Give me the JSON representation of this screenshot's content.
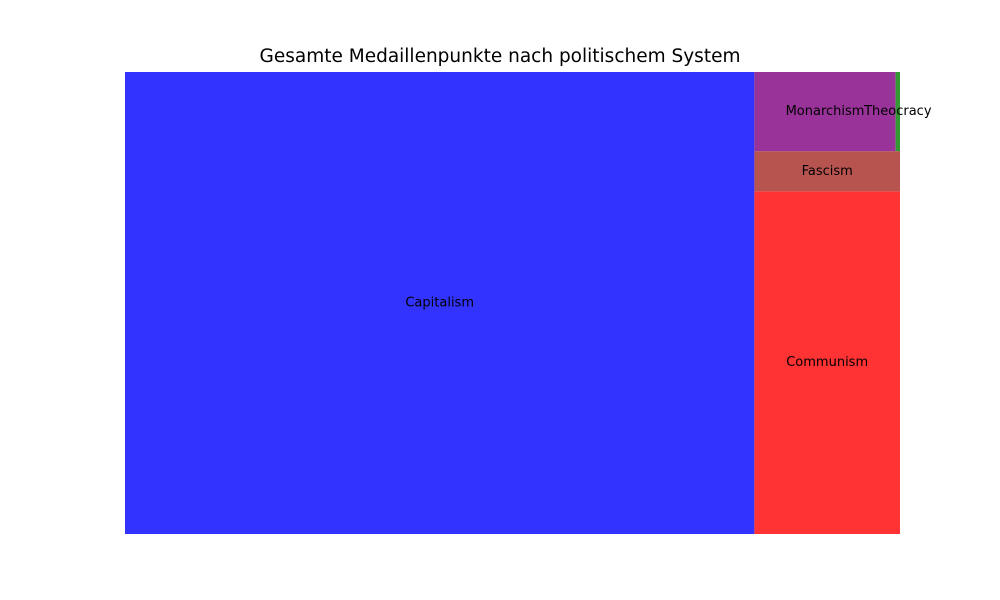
{
  "chart_data": {
    "type": "treemap",
    "title": "Gesamte Medaillenpunkte nach politischem System",
    "items": [
      {
        "label": "Capitalism",
        "value": 1690,
        "color": "#3333ff"
      },
      {
        "label": "Communism",
        "value": 290,
        "color": "#ff3333"
      },
      {
        "label": "Fascism",
        "value": 34,
        "color": "#b85450"
      },
      {
        "label": "Monarchism",
        "value": 65,
        "color": "#993399"
      },
      {
        "label": "Theocracy",
        "value": 2,
        "color": "#339933"
      }
    ]
  }
}
